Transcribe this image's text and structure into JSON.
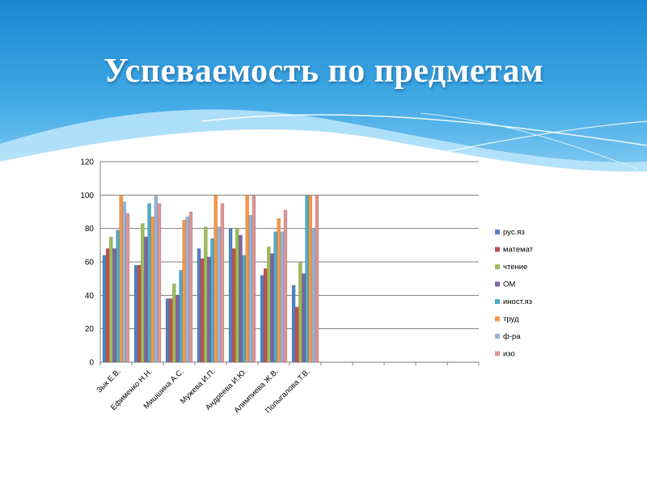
{
  "slide": {
    "title": "Успеваемость по предметам"
  },
  "colors": {
    "sky_top": "#1f8fd6",
    "sky_mid": "#4fb3ea",
    "sky_bottom": "#bfe4f8",
    "gridline": "#7f7f7f"
  },
  "chart_data": {
    "type": "bar",
    "title": "",
    "xlabel": "",
    "ylabel": "",
    "ylim": [
      0,
      120
    ],
    "yticks": [
      0,
      20,
      40,
      60,
      80,
      100,
      120
    ],
    "grid": true,
    "legend_position": "right",
    "categories": [
      "Зык Е.В.",
      "Ефименко Н.Н.",
      "Мишшина А.С.",
      "Мужева И.П.",
      "Андреева И.Ю.",
      "Алимпиева Ж.В.",
      "Полыгалова Т.В."
    ],
    "extra_empty_categories": 5,
    "series": [
      {
        "name": "рус.яз",
        "color": "#4f81bd",
        "values": [
          64,
          58,
          38,
          68,
          80,
          52,
          46
        ]
      },
      {
        "name": "математ",
        "color": "#c0504d",
        "values": [
          68,
          58,
          38,
          62,
          68,
          56,
          33
        ]
      },
      {
        "name": "чтение",
        "color": "#9bbb59",
        "values": [
          75,
          83,
          47,
          81,
          80,
          69,
          60
        ]
      },
      {
        "name": "ОМ",
        "color": "#8064a2",
        "values": [
          68,
          75,
          40,
          63,
          76,
          65,
          53
        ]
      },
      {
        "name": "иност.яз",
        "color": "#4bacc6",
        "values": [
          79,
          95,
          55,
          74,
          64,
          78,
          100
        ]
      },
      {
        "name": "труд",
        "color": "#f79646",
        "values": [
          100,
          87,
          85,
          100,
          100,
          86,
          100
        ]
      },
      {
        "name": "ф-ра",
        "color": "#95b3d7",
        "values": [
          96,
          100,
          87,
          81,
          88,
          78,
          80
        ]
      },
      {
        "name": "изо",
        "color": "#da9694",
        "values": [
          89,
          95,
          90,
          95,
          100,
          91,
          100
        ]
      }
    ]
  }
}
